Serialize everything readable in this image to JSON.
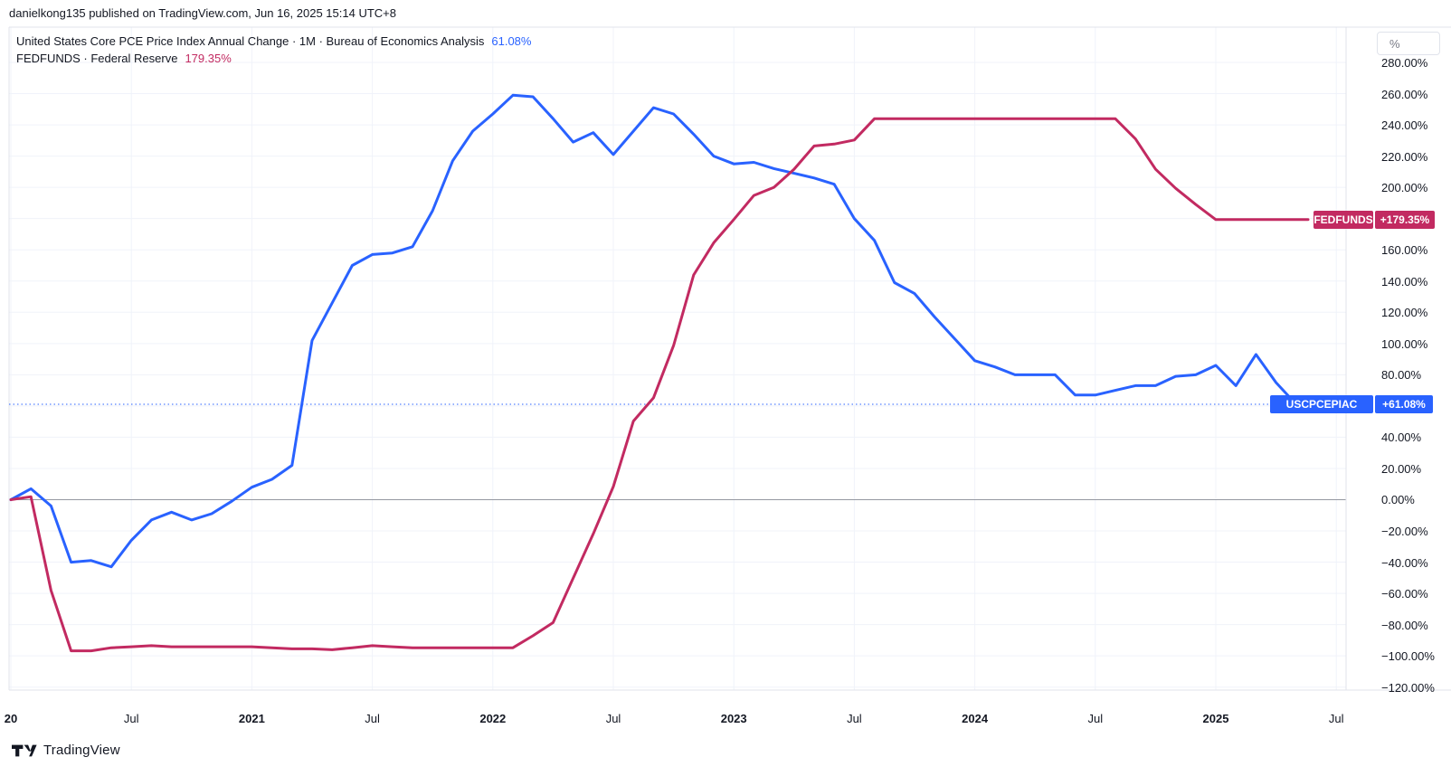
{
  "header": {
    "published": "danielkong135 published on TradingView.com, Jun 16, 2025 15:14 UTC+8"
  },
  "legend": {
    "rows": [
      {
        "title": "United States Core PCE Price Index Annual Change · 1M · Bureau of Economics Analysis",
        "value": "61.08%"
      },
      {
        "title": "FEDFUNDS · Federal Reserve",
        "value": "179.35%"
      }
    ]
  },
  "price_scale": {
    "unit_button": "%",
    "tick_labels": [
      "280.00%",
      "260.00%",
      "240.00%",
      "220.00%",
      "200.00%",
      "180.00%",
      "160.00%",
      "140.00%",
      "120.00%",
      "100.00%",
      "80.00%",
      "60.00%",
      "40.00%",
      "20.00%",
      "0.00%",
      "−20.00%",
      "−40.00%",
      "−60.00%",
      "−80.00%",
      "−100.00%",
      "−120.00%"
    ]
  },
  "time_scale": {
    "labels": [
      "20",
      "Jul",
      "2021",
      "Jul",
      "2022",
      "Jul",
      "2023",
      "Jul",
      "2024",
      "Jul",
      "2025",
      "Jul"
    ]
  },
  "footer": {
    "brand": "TradingView"
  },
  "colors": {
    "pce_blue": "#2962ff",
    "fedfunds_pink": "#c22a61",
    "grid": "#f0f3fa",
    "border": "#e0e3eb",
    "zero_line": "#9598a1",
    "text": "#131722",
    "muted": "#787b86"
  },
  "chart_data": {
    "type": "line",
    "title": "United States Core PCE Price Index Annual Change vs FEDFUNDS, percent change",
    "x": {
      "start": "2020-01",
      "end": "2025-05",
      "interval": "1M",
      "points": 65
    },
    "x_tick_months": [
      0,
      6,
      12,
      18,
      24,
      30,
      36,
      42,
      48,
      54,
      60,
      66
    ],
    "y_axis": {
      "min": -120,
      "max": 280,
      "tick_step": 20,
      "unit": "%"
    },
    "grid": true,
    "zero_line": 0,
    "legend_position": "top-left",
    "series": [
      {
        "name": "USCPCEPIAC",
        "title": "United States Core PCE Price Index Annual Change",
        "source": "Bureau of Economics Analysis",
        "interval": "1M",
        "color": "#2962ff",
        "last_value": 61.08,
        "badge": {
          "label": "USCPCEPIAC",
          "value": "+61.08%"
        },
        "price_line_dotted": true,
        "values": [
          0,
          7,
          -4,
          -40,
          -39,
          -43,
          -26,
          -13,
          -8,
          -13,
          -9,
          -1,
          8,
          13,
          22,
          102,
          126,
          150,
          157,
          158,
          162,
          185,
          217,
          236,
          247,
          259,
          258,
          244,
          229,
          235,
          221,
          236,
          251,
          247,
          234,
          220,
          215,
          216,
          212,
          209,
          206,
          202,
          180,
          166,
          139,
          132,
          117,
          103,
          89,
          85,
          80,
          80,
          80,
          67,
          67,
          70,
          73,
          73,
          79,
          80,
          86,
          73,
          93,
          75,
          61.08
        ]
      },
      {
        "name": "FEDFUNDS",
        "title": "FEDFUNDS",
        "source": "Federal Reserve",
        "interval": "1M",
        "color": "#c22a61",
        "last_value": 179.35,
        "badge": {
          "label": "FEDFUNDS",
          "value": "+179.35%"
        },
        "price_line_dotted": false,
        "values": [
          0,
          1.9,
          -58.1,
          -96.8,
          -96.8,
          -94.8,
          -94.2,
          -93.5,
          -94.2,
          -94.2,
          -94.2,
          -94.2,
          -94.2,
          -94.8,
          -95.5,
          -95.5,
          -96.1,
          -94.8,
          -93.5,
          -94.2,
          -94.8,
          -94.8,
          -94.8,
          -94.8,
          -94.8,
          -94.8,
          -87.1,
          -78.7,
          -50.3,
          -21.9,
          8.4,
          50.3,
          65.2,
          98.7,
          143.9,
          164.5,
          179.4,
          194.8,
          200.0,
          211.6,
          226.5,
          227.7,
          230.3,
          243.9,
          243.9,
          243.9,
          243.9,
          243.9,
          243.9,
          243.9,
          243.9,
          243.9,
          243.9,
          243.9,
          243.9,
          243.9,
          231.0,
          211.6,
          199.4,
          189.0,
          179.35,
          179.35,
          179.35,
          179.35,
          179.35
        ]
      }
    ]
  }
}
